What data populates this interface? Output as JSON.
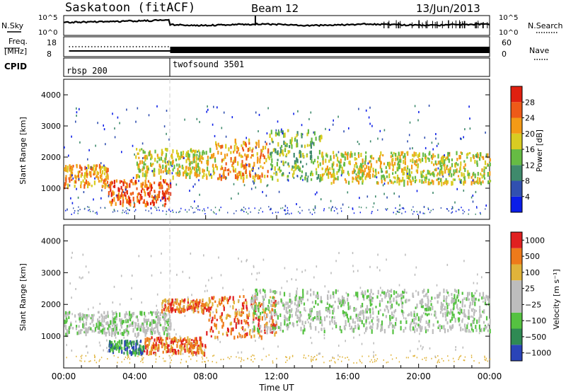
{
  "header": {
    "station": "Saskatoon (fitACF)",
    "beam": "Beam 12",
    "date": "13/Jun/2013"
  },
  "summary_panels": {
    "nsky_label": "N.Sky",
    "nsearch_label": "N.Search",
    "nsky_ticks": [
      "10^5",
      "10^0"
    ],
    "nsearch_ticks": [
      "10^5",
      "10^0"
    ],
    "freq_label_1": "Freq.",
    "freq_label_2": "[MHz]",
    "freq_ticks": [
      "18",
      "8"
    ],
    "nave_label": "Nave",
    "nave_ticks": [
      "60",
      "0"
    ],
    "cpid_label": "CPID",
    "cpid_segments": [
      "rbsp 200",
      "twofsound 3501"
    ]
  },
  "chart_data": [
    {
      "type": "heatmap",
      "name": "power",
      "ylabel": "Slant Range [km]",
      "ylim": [
        0,
        4500
      ],
      "yticks": [
        1000,
        2000,
        3000,
        4000
      ],
      "xlim": [
        0,
        24
      ],
      "colorbar": {
        "label": "Power [dB]",
        "ticks": [
          4,
          8,
          12,
          16,
          20,
          24,
          28
        ],
        "colors": [
          "#0a1de8",
          "#3150b0",
          "#3f8a6c",
          "#66bb44",
          "#d8cc22",
          "#f39a16",
          "#ee5a18",
          "#e02010"
        ]
      },
      "echo_bands": [
        {
          "start_h": 0.0,
          "end_h": 2.5,
          "range_lo": 1100,
          "range_hi": 1800,
          "level": 5
        },
        {
          "start_h": 2.5,
          "end_h": 6.0,
          "range_lo": 500,
          "range_hi": 1300,
          "level": 6
        },
        {
          "start_h": 4.0,
          "end_h": 8.5,
          "range_lo": 1400,
          "range_hi": 2300,
          "level": 4
        },
        {
          "start_h": 8.5,
          "end_h": 11.5,
          "range_lo": 1300,
          "range_hi": 2600,
          "level": 5
        },
        {
          "start_h": 11.5,
          "end_h": 14.5,
          "range_lo": 1300,
          "range_hi": 2900,
          "level": 3
        },
        {
          "start_h": 14.5,
          "end_h": 24.0,
          "range_lo": 1200,
          "range_hi": 2200,
          "level": 4
        }
      ]
    },
    {
      "type": "heatmap",
      "name": "velocity",
      "ylabel": "Slant Range [km]",
      "xlabel": "Time UT",
      "ylim": [
        0,
        4500
      ],
      "yticks": [
        1000,
        2000,
        3000,
        4000
      ],
      "xlim": [
        0,
        24
      ],
      "xticks": [
        "00:00",
        "04:00",
        "08:00",
        "12:00",
        "16:00",
        "20:00",
        "00:00"
      ],
      "colorbar": {
        "label": "Velocity [m s⁻¹]",
        "ticks": [
          "1000",
          "500",
          "100",
          "25",
          "−25",
          "−100",
          "−500",
          "−1000"
        ],
        "colors": [
          "#2a44b8",
          "#2f8a54",
          "#55c241",
          "#bdbdbd",
          "#bdbdbd",
          "#e0b33a",
          "#ee7a1a",
          "#e02020"
        ]
      },
      "echo_bands": [
        {
          "start_h": 0.0,
          "end_h": 6.0,
          "range_lo": 1100,
          "range_hi": 1800,
          "level": 3
        },
        {
          "start_h": 2.5,
          "end_h": 4.5,
          "range_lo": 500,
          "range_hi": 900,
          "level": 1
        },
        {
          "start_h": 4.5,
          "end_h": 8.0,
          "range_lo": 500,
          "range_hi": 1000,
          "level": 6
        },
        {
          "start_h": 5.5,
          "end_h": 8.0,
          "range_lo": 1800,
          "range_hi": 2200,
          "level": 6
        },
        {
          "start_h": 8.0,
          "end_h": 12.0,
          "range_lo": 1000,
          "range_hi": 2300,
          "level": 6
        },
        {
          "start_h": 10.5,
          "end_h": 24.0,
          "range_lo": 1200,
          "range_hi": 2500,
          "level": 3
        }
      ]
    }
  ]
}
